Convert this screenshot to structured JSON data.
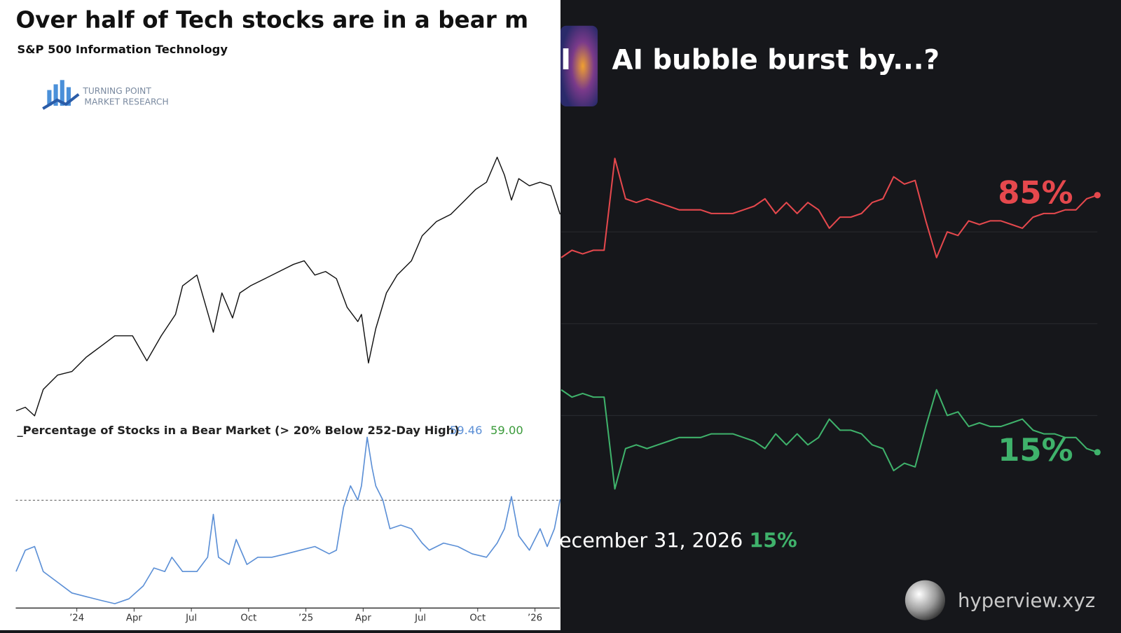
{
  "chart_data": [
    {
      "type": "line",
      "title": "Over half of Tech stocks are in a bear m",
      "subtitle": "S&P 500 Information Technology",
      "logo": [
        "TURNING POINT",
        "MARKET RESEARCH"
      ],
      "xlim": [
        -3.2,
        25.3
      ],
      "ylim": [
        0,
        100
      ],
      "x": [
        -3.18,
        -2.7,
        -2.21,
        -1.76,
        -1.01,
        -0.26,
        0.49,
        1.24,
        1.99,
        2.92,
        3.67,
        4.42,
        5.17,
        5.54,
        6.29,
        6.67,
        7.15,
        7.6,
        8.16,
        8.54,
        9.1,
        9.85,
        10.6,
        11.35,
        11.91,
        12.47,
        13.03,
        13.6,
        14.16,
        14.72,
        14.91,
        15.28,
        15.66,
        16.22,
        16.78,
        17.53,
        18.09,
        18.84,
        19.59,
        20.34,
        20.9,
        21.46,
        22.02,
        22.4,
        22.77,
        23.15,
        23.71,
        24.27,
        24.83,
        25.32
      ],
      "series": [
        {
          "color": "#111111",
          "values": [
            6.25,
            7.5,
            4.5,
            13.75,
            18.75,
            20,
            25,
            28.75,
            32.5,
            32.5,
            23.75,
            32.5,
            40,
            50,
            53.75,
            45,
            33.75,
            47.5,
            38.75,
            47.5,
            50,
            52.5,
            55,
            57.5,
            58.75,
            53.75,
            55,
            52.5,
            42.5,
            37.5,
            40,
            23,
            35,
            47.5,
            53.75,
            58.75,
            67.5,
            72.5,
            75,
            80,
            83.75,
            86.25,
            95,
            88.75,
            80,
            87.5,
            85,
            86.25,
            85,
            75
          ]
        }
      ]
    },
    {
      "type": "line",
      "title": "_Percentage of Stocks in a Bear Market (> 20% Below 252-Day High)",
      "xlim": [
        -3.2,
        25.3
      ],
      "ylim": [
        0,
        98.4
      ],
      "xticks": [
        {
          "value": 0,
          "label": "’24"
        },
        {
          "value": 3,
          "label": "Apr"
        },
        {
          "value": 6,
          "label": "Jul"
        },
        {
          "value": 9,
          "label": "Oct"
        },
        {
          "value": 12,
          "label": "’25"
        },
        {
          "value": 15,
          "label": "Apr"
        },
        {
          "value": 18,
          "label": "Jul"
        },
        {
          "value": 21,
          "label": "Oct"
        },
        {
          "value": 24,
          "label": "’26"
        }
      ],
      "reference_line": {
        "value": 59,
        "label": "59.00",
        "color": "#3a9a3a"
      },
      "x": [
        -3.18,
        -2.7,
        -2.21,
        -1.76,
        -1.01,
        -0.26,
        0.49,
        1.24,
        1.99,
        2.73,
        3.48,
        4.04,
        4.61,
        4.98,
        5.54,
        6.29,
        6.85,
        7.15,
        7.42,
        7.98,
        8.35,
        8.91,
        9.48,
        10.22,
        10.97,
        11.72,
        12.47,
        13.22,
        13.6,
        13.97,
        14.34,
        14.72,
        14.91,
        15.21,
        15.47,
        15.66,
        16.03,
        16.4,
        16.97,
        17.53,
        18.09,
        18.46,
        19.21,
        19.96,
        20.71,
        21.46,
        22.02,
        22.4,
        22.77,
        23.15,
        23.71,
        24.27,
        24.64,
        25.02,
        25.32
      ],
      "series": [
        {
          "color": "#5b8fd6",
          "last_label": "59.46",
          "values": [
            19.7,
            31.5,
            33.5,
            19.7,
            13.8,
            7.9,
            5.9,
            3.9,
            2.0,
            4.7,
            11.8,
            21.7,
            19.7,
            27.6,
            19.7,
            19.7,
            27.6,
            51.2,
            27.6,
            23.6,
            37.4,
            23.6,
            27.6,
            27.6,
            29.5,
            31.5,
            33.5,
            29.5,
            31.5,
            55.1,
            66.9,
            59.1,
            66.9,
            93.7,
            76.8,
            66.9,
            59.1,
            43.3,
            45.3,
            43.3,
            35.4,
            31.5,
            35.4,
            33.5,
            29.5,
            27.6,
            35.4,
            43.3,
            61.0,
            39.4,
            31.5,
            43.3,
            33.5,
            43.3,
            59.46
          ]
        }
      ]
    },
    {
      "type": "line",
      "title": "AI bubble burst by...?",
      "logo_text": "I",
      "ylim": [
        0,
        100
      ],
      "yticks": [
        25,
        50,
        75
      ],
      "grid": true,
      "series": [
        {
          "color": "#e5484d",
          "end_label": "85%",
          "values": [
            68,
            70,
            69,
            70,
            70,
            95,
            84,
            83,
            84,
            83,
            82,
            81,
            81,
            81,
            80,
            80,
            80,
            81,
            82,
            84,
            80,
            83,
            80,
            83,
            81,
            76,
            79,
            79,
            80,
            83,
            84,
            90,
            88,
            89,
            78,
            68,
            75,
            74,
            78,
            77,
            78,
            78,
            77,
            76,
            79,
            80,
            80,
            81,
            81,
            84,
            85
          ]
        },
        {
          "color": "#3fb26b",
          "end_label": "15%",
          "values": [
            32,
            30,
            31,
            30,
            30,
            5,
            16,
            17,
            16,
            17,
            18,
            19,
            19,
            19,
            20,
            20,
            20,
            19,
            18,
            16,
            20,
            17,
            20,
            17,
            19,
            24,
            21,
            21,
            20,
            17,
            16,
            10,
            12,
            11,
            22,
            32,
            25,
            26,
            22,
            23,
            22,
            22,
            23,
            24,
            21,
            20,
            20,
            19,
            19,
            16,
            15
          ]
        }
      ],
      "outcome": {
        "name": "ecember 31, 2026",
        "value": 15,
        "label": "15%"
      },
      "brand": "hyperview.xyz"
    }
  ]
}
